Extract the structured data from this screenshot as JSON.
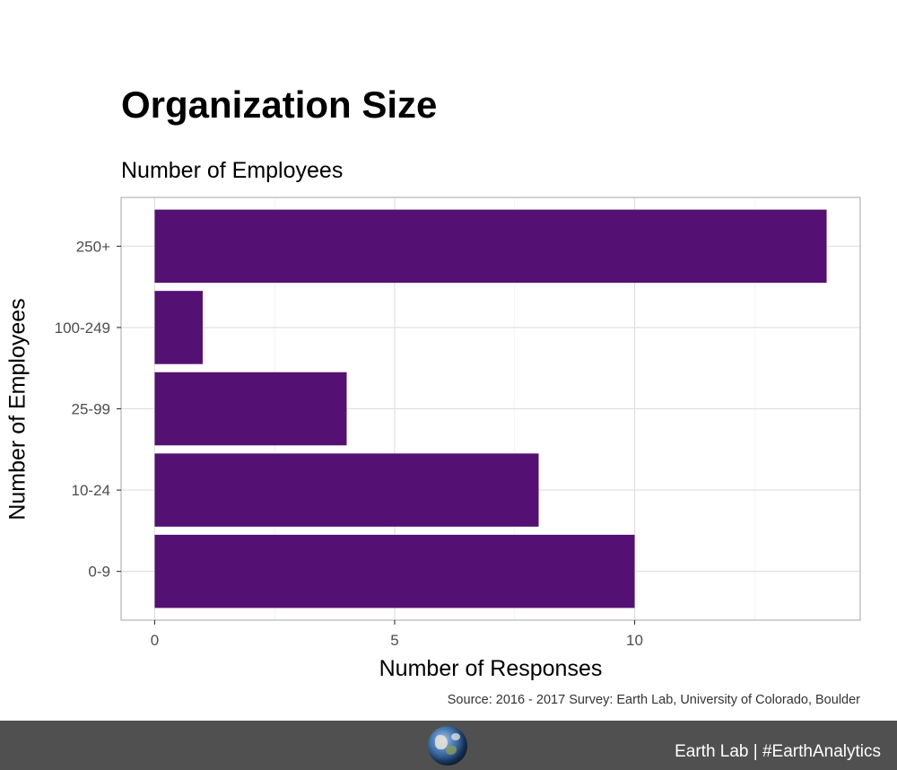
{
  "chart_data": {
    "type": "bar",
    "orientation": "horizontal",
    "title": "Organization Size",
    "subtitle": "Number of Employees",
    "xlabel": "Number of Responses",
    "ylabel": "Number of Employees",
    "categories": [
      "0-9",
      "10-24",
      "25-99",
      "100-249",
      "250+"
    ],
    "values": [
      10,
      8,
      4,
      1,
      14
    ],
    "xlim": [
      -0.7,
      14.7
    ],
    "x_ticks": [
      0,
      5,
      10
    ],
    "x_tick_labels": [
      "0",
      "5",
      "10"
    ],
    "grid": true,
    "bar_color": "#541072",
    "caption": "Source: 2016 - 2017 Survey: Earth Lab, University of Colorado, Boulder"
  },
  "footer": {
    "text": "Earth Lab | #EarthAnalytics",
    "background": "#505050",
    "logo_icon": "globe-icon"
  }
}
